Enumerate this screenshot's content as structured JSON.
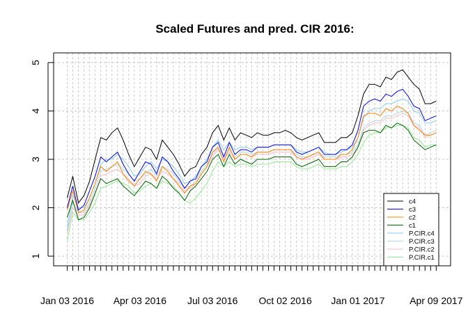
{
  "chart_data": {
    "type": "line",
    "title": "Scaled Futures and pred. CIR 2016:",
    "xlabel": "",
    "ylabel": "",
    "ylim": [
      0.8,
      5.2
    ],
    "yticks": [
      1,
      2,
      3,
      4,
      5
    ],
    "x_tick_labels": [
      "Jan 03 2016",
      "Apr 03 2016",
      "Jul 03 2016",
      "Oct 02 2016",
      "Jan 01 2017",
      "Apr 09 2017"
    ],
    "grid": true,
    "legend_position": "bottom-right",
    "x": [
      "2016-01-03",
      "2016-01-10",
      "2016-01-17",
      "2016-01-24",
      "2016-01-31",
      "2016-02-07",
      "2016-02-14",
      "2016-02-21",
      "2016-02-28",
      "2016-03-06",
      "2016-03-13",
      "2016-03-20",
      "2016-03-27",
      "2016-04-03",
      "2016-04-10",
      "2016-04-17",
      "2016-04-24",
      "2016-05-01",
      "2016-05-08",
      "2016-05-15",
      "2016-05-22",
      "2016-05-29",
      "2016-06-05",
      "2016-06-12",
      "2016-06-19",
      "2016-06-26",
      "2016-07-03",
      "2016-07-10",
      "2016-07-17",
      "2016-07-24",
      "2016-07-31",
      "2016-08-07",
      "2016-08-14",
      "2016-08-21",
      "2016-08-28",
      "2016-09-04",
      "2016-09-11",
      "2016-09-18",
      "2016-09-25",
      "2016-10-02",
      "2016-10-09",
      "2016-10-16",
      "2016-10-23",
      "2016-10-30",
      "2016-11-06",
      "2016-11-13",
      "2016-11-20",
      "2016-11-27",
      "2016-12-04",
      "2016-12-11",
      "2016-12-18",
      "2016-12-25",
      "2017-01-01",
      "2017-01-08",
      "2017-01-15",
      "2017-01-22",
      "2017-01-29",
      "2017-02-05",
      "2017-02-12",
      "2017-02-19",
      "2017-02-26",
      "2017-03-05",
      "2017-03-12",
      "2017-03-19",
      "2017-03-26",
      "2017-04-02",
      "2017-04-09"
    ],
    "series": [
      {
        "name": "c4",
        "color": "#000000",
        "values": [
          2.2,
          2.65,
          2.1,
          2.25,
          2.55,
          3.0,
          3.45,
          3.4,
          3.55,
          3.65,
          3.4,
          3.1,
          2.85,
          3.05,
          3.25,
          3.2,
          3.0,
          3.4,
          3.25,
          3.1,
          2.9,
          2.65,
          2.8,
          2.85,
          3.1,
          3.25,
          3.55,
          3.7,
          3.4,
          3.65,
          3.4,
          3.55,
          3.5,
          3.45,
          3.55,
          3.5,
          3.5,
          3.55,
          3.55,
          3.6,
          3.55,
          3.45,
          3.4,
          3.45,
          3.5,
          3.55,
          3.35,
          3.35,
          3.35,
          3.45,
          3.45,
          3.55,
          3.9,
          4.35,
          4.55,
          4.55,
          4.5,
          4.7,
          4.65,
          4.8,
          4.85,
          4.7,
          4.55,
          4.45,
          4.15,
          4.15,
          4.2
        ]
      },
      {
        "name": "c3",
        "color": "#0000ee",
        "values": [
          2.0,
          2.45,
          1.95,
          2.05,
          2.35,
          2.65,
          3.05,
          2.95,
          3.05,
          3.15,
          2.9,
          2.7,
          2.55,
          2.75,
          2.95,
          2.9,
          2.7,
          3.05,
          2.95,
          2.75,
          2.6,
          2.4,
          2.55,
          2.6,
          2.85,
          2.95,
          3.25,
          3.35,
          3.05,
          3.35,
          3.1,
          3.2,
          3.2,
          3.15,
          3.25,
          3.25,
          3.25,
          3.3,
          3.3,
          3.3,
          3.3,
          3.15,
          3.1,
          3.15,
          3.2,
          3.25,
          3.1,
          3.1,
          3.1,
          3.2,
          3.2,
          3.3,
          3.6,
          4.1,
          4.2,
          4.25,
          4.2,
          4.35,
          4.3,
          4.4,
          4.45,
          4.3,
          4.1,
          4.05,
          3.8,
          3.85,
          3.9
        ]
      },
      {
        "name": "c2",
        "color": "#ff8000",
        "values": [
          1.95,
          2.35,
          1.9,
          1.95,
          2.2,
          2.5,
          2.85,
          2.75,
          2.85,
          2.95,
          2.7,
          2.55,
          2.45,
          2.6,
          2.75,
          2.7,
          2.55,
          2.85,
          2.75,
          2.6,
          2.45,
          2.3,
          2.45,
          2.5,
          2.7,
          2.85,
          3.15,
          3.25,
          2.95,
          3.25,
          3.0,
          3.1,
          3.1,
          3.05,
          3.15,
          3.15,
          3.15,
          3.2,
          3.2,
          3.2,
          3.2,
          3.05,
          3.0,
          3.05,
          3.1,
          3.15,
          3.0,
          3.0,
          3.0,
          3.1,
          3.1,
          3.2,
          3.45,
          3.9,
          3.95,
          3.95,
          3.9,
          4.05,
          4.0,
          4.1,
          4.05,
          3.95,
          3.7,
          3.6,
          3.5,
          3.5,
          3.55
        ]
      },
      {
        "name": "c1",
        "color": "#006400",
        "values": [
          1.8,
          2.15,
          1.75,
          1.8,
          2.0,
          2.3,
          2.6,
          2.5,
          2.55,
          2.6,
          2.45,
          2.35,
          2.25,
          2.4,
          2.55,
          2.5,
          2.4,
          2.65,
          2.55,
          2.4,
          2.3,
          2.15,
          2.35,
          2.45,
          2.6,
          2.75,
          3.0,
          3.1,
          2.85,
          3.1,
          2.9,
          3.0,
          2.95,
          2.9,
          3.0,
          3.0,
          3.0,
          3.05,
          3.05,
          3.05,
          3.05,
          2.9,
          2.85,
          2.9,
          2.95,
          3.0,
          2.85,
          2.85,
          2.85,
          2.95,
          2.95,
          3.05,
          3.25,
          3.55,
          3.6,
          3.6,
          3.55,
          3.7,
          3.65,
          3.75,
          3.7,
          3.6,
          3.4,
          3.3,
          3.2,
          3.25,
          3.3
        ]
      },
      {
        "name": "P.CIR.c4",
        "color": "#87ceeb",
        "values": [
          1.6,
          2.25,
          2.0,
          2.0,
          2.2,
          2.5,
          2.9,
          3.0,
          3.0,
          3.1,
          3.0,
          2.85,
          2.65,
          2.7,
          2.85,
          2.95,
          2.8,
          3.0,
          2.95,
          2.85,
          2.7,
          2.5,
          2.55,
          2.65,
          2.85,
          3.0,
          3.25,
          3.4,
          3.2,
          3.35,
          3.2,
          3.25,
          3.25,
          3.2,
          3.25,
          3.25,
          3.25,
          3.3,
          3.3,
          3.3,
          3.3,
          3.2,
          3.15,
          3.15,
          3.2,
          3.25,
          3.15,
          3.1,
          3.1,
          3.15,
          3.2,
          3.25,
          3.45,
          3.85,
          4.0,
          4.05,
          4.05,
          4.15,
          4.15,
          4.2,
          4.25,
          4.2,
          4.0,
          3.95,
          3.75,
          3.75,
          3.8
        ]
      },
      {
        "name": "P.CIR.c3",
        "color": "#add8e6",
        "values": [
          1.5,
          2.1,
          1.9,
          1.9,
          2.1,
          2.4,
          2.75,
          2.8,
          2.85,
          2.9,
          2.8,
          2.7,
          2.55,
          2.6,
          2.7,
          2.8,
          2.65,
          2.85,
          2.8,
          2.7,
          2.55,
          2.4,
          2.45,
          2.55,
          2.75,
          2.9,
          3.1,
          3.25,
          3.05,
          3.2,
          3.05,
          3.15,
          3.15,
          3.1,
          3.15,
          3.15,
          3.15,
          3.2,
          3.2,
          3.2,
          3.2,
          3.1,
          3.05,
          3.05,
          3.1,
          3.15,
          3.05,
          3.05,
          3.05,
          3.1,
          3.1,
          3.15,
          3.3,
          3.65,
          3.75,
          3.8,
          3.8,
          3.9,
          3.9,
          3.95,
          4.0,
          3.95,
          3.75,
          3.7,
          3.5,
          3.55,
          3.6
        ]
      },
      {
        "name": "P.CIR.c2",
        "color": "#ffb6c1",
        "values": [
          1.45,
          2.0,
          1.85,
          1.85,
          2.05,
          2.3,
          2.65,
          2.7,
          2.75,
          2.8,
          2.7,
          2.6,
          2.45,
          2.5,
          2.65,
          2.7,
          2.6,
          2.75,
          2.7,
          2.6,
          2.5,
          2.35,
          2.4,
          2.5,
          2.7,
          2.85,
          3.05,
          3.2,
          3.0,
          3.15,
          3.0,
          3.1,
          3.1,
          3.05,
          3.1,
          3.1,
          3.1,
          3.15,
          3.15,
          3.15,
          3.15,
          3.05,
          3.0,
          3.0,
          3.05,
          3.1,
          3.0,
          3.0,
          3.0,
          3.05,
          3.05,
          3.1,
          3.25,
          3.6,
          3.7,
          3.75,
          3.75,
          3.85,
          3.85,
          3.9,
          3.95,
          3.9,
          3.7,
          3.65,
          3.45,
          3.5,
          3.55
        ]
      },
      {
        "name": "P.CIR.c1",
        "color": "#90ee90",
        "values": [
          1.3,
          1.9,
          1.75,
          1.75,
          1.9,
          2.1,
          2.4,
          2.45,
          2.5,
          2.55,
          2.5,
          2.45,
          2.3,
          2.35,
          2.45,
          2.5,
          2.4,
          2.55,
          2.5,
          2.45,
          2.3,
          2.15,
          2.1,
          2.2,
          2.35,
          2.5,
          2.75,
          2.95,
          2.85,
          2.95,
          2.85,
          2.9,
          2.9,
          2.85,
          2.9,
          2.9,
          2.9,
          2.95,
          2.95,
          2.95,
          2.95,
          2.85,
          2.8,
          2.8,
          2.85,
          2.9,
          2.8,
          2.8,
          2.8,
          2.85,
          2.85,
          2.95,
          3.1,
          3.35,
          3.5,
          3.55,
          3.55,
          3.65,
          3.65,
          3.7,
          3.7,
          3.65,
          3.45,
          3.4,
          3.25,
          3.3,
          3.3
        ]
      }
    ]
  }
}
